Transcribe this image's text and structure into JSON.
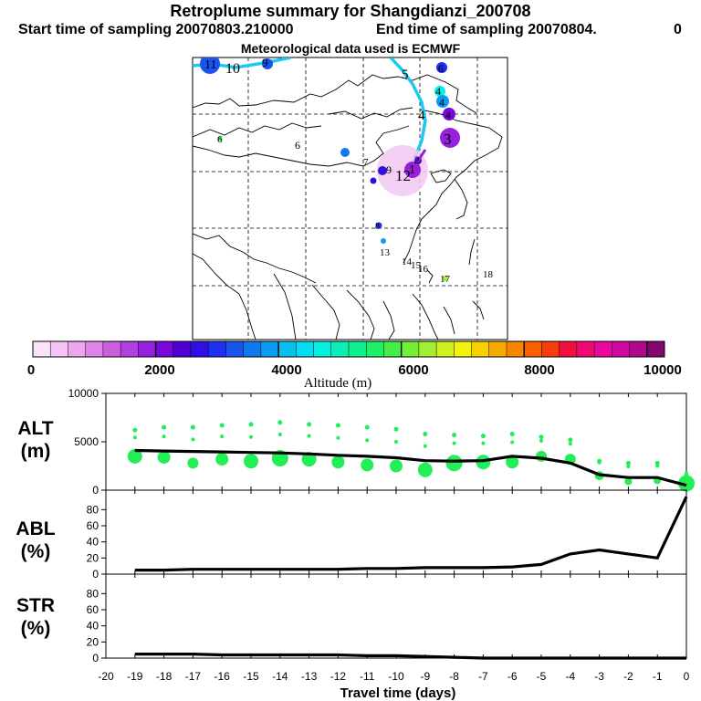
{
  "header": {
    "title": "Retroplume summary for Shangdianzi_200708",
    "start_label": "Start time of sampling 20070803.210000",
    "end_label": "End time of sampling 20070804.",
    "end_suffix": "0",
    "met_label": "Meteorological data used is ECMWF"
  },
  "colors": {
    "track": "#1ec8f0",
    "green": "#22ee55",
    "scale": [
      "#fbe2fb",
      "#f4c4f4",
      "#eaa6ee",
      "#de86e8",
      "#cc5fe0",
      "#b040e0",
      "#9620dc",
      "#7a08d8",
      "#5000d0",
      "#3010e0",
      "#2030f0",
      "#1a54f0",
      "#1178f0",
      "#0a9cf0",
      "#08bff0",
      "#06dcf0",
      "#06f0e0",
      "#08f0b8",
      "#10f090",
      "#20f068",
      "#40f048",
      "#70f038",
      "#a0f030",
      "#d0f020",
      "#f4f010",
      "#f8d000",
      "#f8aa00",
      "#f88400",
      "#f86000",
      "#f83c10",
      "#f01040",
      "#ee0a70",
      "#e808a0",
      "#d008a0",
      "#b00890",
      "#800870"
    ]
  },
  "map": {
    "labels": [
      "1",
      "2",
      "3",
      "4",
      "4",
      "4",
      "4",
      "5",
      "6",
      "6",
      "6",
      "7",
      "8",
      "9",
      "9",
      "10",
      "11",
      "12",
      "13",
      "14",
      "15",
      "16",
      "17",
      "18"
    ]
  },
  "color_scale": {
    "ticks": [
      "0",
      "2000",
      "4000",
      "6000",
      "8000",
      "10000"
    ],
    "title": "Altitude (m)"
  },
  "chart_data": [
    {
      "type": "line",
      "panel_label": "ALT",
      "unit_label": "(m)",
      "x": [
        -19,
        -18,
        -17,
        -16,
        -15,
        -14,
        -13,
        -12,
        -11,
        -10,
        -9,
        -8,
        -7,
        -6,
        -5,
        -4,
        -3,
        -2,
        -1,
        0
      ],
      "series": [
        {
          "name": "mean altitude",
          "values": [
            4100,
            4050,
            4000,
            3950,
            3900,
            3850,
            3750,
            3600,
            3500,
            3350,
            3050,
            3000,
            3050,
            3500,
            3300,
            2800,
            1600,
            1300,
            1300,
            500
          ]
        }
      ],
      "ylim": [
        0,
        10000
      ],
      "yticks": [
        "10000",
        "5000",
        "0"
      ],
      "scatter": {
        "x": [
          -19,
          -18,
          -17,
          -16,
          -15,
          -14,
          -13,
          -12,
          -11,
          -10,
          -9,
          -8,
          -7,
          -6,
          -5,
          -4,
          -3,
          -2,
          -1,
          0
        ],
        "upper": [
          6200,
          6500,
          6500,
          6700,
          6800,
          7000,
          6800,
          6700,
          6500,
          6300,
          5800,
          5700,
          5600,
          5800,
          5500,
          5200,
          3000,
          2800,
          2800,
          1500
        ],
        "lower": [
          3500,
          3400,
          2800,
          3200,
          3000,
          3300,
          3200,
          2900,
          2600,
          2500,
          2100,
          2800,
          2900,
          2900,
          3500,
          3200,
          1500,
          900,
          1000,
          700
        ]
      }
    },
    {
      "type": "line",
      "panel_label": "ABL",
      "unit_label": "(%)",
      "x": [
        -19,
        -18,
        -17,
        -16,
        -15,
        -14,
        -13,
        -12,
        -11,
        -10,
        -9,
        -8,
        -7,
        -6,
        -5,
        -4,
        -3,
        -2,
        -1,
        0
      ],
      "series": [
        {
          "name": "ABL fraction",
          "values": [
            5,
            5,
            6,
            6,
            6,
            6,
            6,
            6,
            7,
            7,
            8,
            8,
            8,
            9,
            12,
            25,
            30,
            25,
            20,
            96
          ]
        }
      ],
      "ylim": [
        0,
        100
      ],
      "yticks": [
        "80",
        "60",
        "40",
        "20",
        "0"
      ]
    },
    {
      "type": "line",
      "panel_label": "STR",
      "unit_label": "(%)",
      "xlabel": "Travel time (days)",
      "x": [
        -19,
        -18,
        -17,
        -16,
        -15,
        -14,
        -13,
        -12,
        -11,
        -10,
        -9,
        -8,
        -7,
        -6,
        -5,
        -4,
        -3,
        -2,
        -1,
        0
      ],
      "series": [
        {
          "name": "STR fraction",
          "values": [
            5,
            5,
            5,
            4,
            4,
            4,
            4,
            4,
            3,
            3,
            2,
            1,
            0,
            0,
            0,
            0,
            0,
            0,
            0,
            0
          ]
        }
      ],
      "ylim": [
        0,
        100
      ],
      "yticks": [
        "80",
        "60",
        "40",
        "20",
        "0"
      ],
      "xticks": [
        "-20",
        "-19",
        "-18",
        "-17",
        "-16",
        "-15",
        "-14",
        "-13",
        "-12",
        "-11",
        "-10",
        "-9",
        "-8",
        "-7",
        "-6",
        "-5",
        "-4",
        "-3",
        "-2",
        "-1",
        "0"
      ]
    }
  ]
}
